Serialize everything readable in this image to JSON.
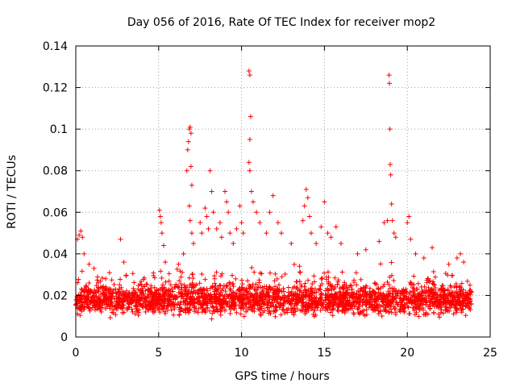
{
  "chart_data": {
    "type": "scatter",
    "title": "Day 056 of 2016, Rate Of TEC Index for receiver mop2",
    "xlabel": "GPS time / hours",
    "ylabel": "ROTI / TECUs",
    "xlim": [
      0,
      25
    ],
    "ylim": [
      0,
      0.14
    ],
    "xticks": [
      "0",
      "5",
      "10",
      "15",
      "20",
      "25"
    ],
    "yticks": [
      "0",
      "0.02",
      "0.04",
      "0.06",
      "0.08",
      "0.1",
      "0.12",
      "0.14"
    ],
    "grid": true,
    "marker": "plus",
    "color": "#ff0000",
    "baseline": {
      "x_range": [
        0,
        23.9
      ],
      "typical_range": [
        0.008,
        0.025
      ]
    },
    "points": [
      [
        0.1,
        0.047
      ],
      [
        0.2,
        0.049
      ],
      [
        0.3,
        0.051
      ],
      [
        0.4,
        0.048
      ],
      [
        0.5,
        0.04
      ],
      [
        0.8,
        0.035
      ],
      [
        1.1,
        0.033
      ],
      [
        2.7,
        0.047
      ],
      [
        2.9,
        0.036
      ],
      [
        5.05,
        0.061
      ],
      [
        5.1,
        0.058
      ],
      [
        5.15,
        0.055
      ],
      [
        5.2,
        0.05
      ],
      [
        5.3,
        0.044
      ],
      [
        5.4,
        0.036
      ],
      [
        6.2,
        0.035
      ],
      [
        6.5,
        0.04
      ],
      [
        6.7,
        0.08
      ],
      [
        6.75,
        0.09
      ],
      [
        6.8,
        0.094
      ],
      [
        6.85,
        0.1
      ],
      [
        6.9,
        0.101
      ],
      [
        6.95,
        0.098
      ],
      [
        6.95,
        0.082
      ],
      [
        7.0,
        0.073
      ],
      [
        6.85,
        0.063
      ],
      [
        6.9,
        0.056
      ],
      [
        7.0,
        0.05
      ],
      [
        7.1,
        0.045
      ],
      [
        7.5,
        0.055
      ],
      [
        7.6,
        0.05
      ],
      [
        7.8,
        0.062
      ],
      [
        7.9,
        0.058
      ],
      [
        8.0,
        0.052
      ],
      [
        8.1,
        0.08
      ],
      [
        8.2,
        0.07
      ],
      [
        8.3,
        0.06
      ],
      [
        8.5,
        0.052
      ],
      [
        8.7,
        0.055
      ],
      [
        8.8,
        0.048
      ],
      [
        9.0,
        0.07
      ],
      [
        9.1,
        0.065
      ],
      [
        9.2,
        0.06
      ],
      [
        9.3,
        0.05
      ],
      [
        9.5,
        0.045
      ],
      [
        9.7,
        0.052
      ],
      [
        9.9,
        0.063
      ],
      [
        10.0,
        0.055
      ],
      [
        10.1,
        0.05
      ],
      [
        10.45,
        0.128
      ],
      [
        10.5,
        0.126
      ],
      [
        10.55,
        0.106
      ],
      [
        10.5,
        0.095
      ],
      [
        10.45,
        0.084
      ],
      [
        10.5,
        0.08
      ],
      [
        10.6,
        0.07
      ],
      [
        10.7,
        0.065
      ],
      [
        10.9,
        0.06
      ],
      [
        11.1,
        0.055
      ],
      [
        11.5,
        0.05
      ],
      [
        11.7,
        0.06
      ],
      [
        11.9,
        0.068
      ],
      [
        12.2,
        0.055
      ],
      [
        12.4,
        0.05
      ],
      [
        13.0,
        0.045
      ],
      [
        13.7,
        0.056
      ],
      [
        13.8,
        0.063
      ],
      [
        13.9,
        0.071
      ],
      [
        14.0,
        0.067
      ],
      [
        14.1,
        0.058
      ],
      [
        14.2,
        0.05
      ],
      [
        14.5,
        0.045
      ],
      [
        14.8,
        0.053
      ],
      [
        15.0,
        0.065
      ],
      [
        15.2,
        0.05
      ],
      [
        15.4,
        0.048
      ],
      [
        15.7,
        0.053
      ],
      [
        16.0,
        0.045
      ],
      [
        17.0,
        0.04
      ],
      [
        17.5,
        0.042
      ],
      [
        18.3,
        0.046
      ],
      [
        18.6,
        0.055
      ],
      [
        18.8,
        0.056
      ],
      [
        18.9,
        0.126
      ],
      [
        18.92,
        0.122
      ],
      [
        18.95,
        0.1
      ],
      [
        18.97,
        0.083
      ],
      [
        19.0,
        0.078
      ],
      [
        19.05,
        0.064
      ],
      [
        19.1,
        0.056
      ],
      [
        19.2,
        0.05
      ],
      [
        19.3,
        0.048
      ],
      [
        20.0,
        0.055
      ],
      [
        20.1,
        0.058
      ],
      [
        20.2,
        0.047
      ],
      [
        20.5,
        0.04
      ],
      [
        21.0,
        0.038
      ],
      [
        21.5,
        0.043
      ],
      [
        22.5,
        0.035
      ],
      [
        23.0,
        0.038
      ],
      [
        23.2,
        0.04
      ],
      [
        23.4,
        0.036
      ]
    ]
  }
}
